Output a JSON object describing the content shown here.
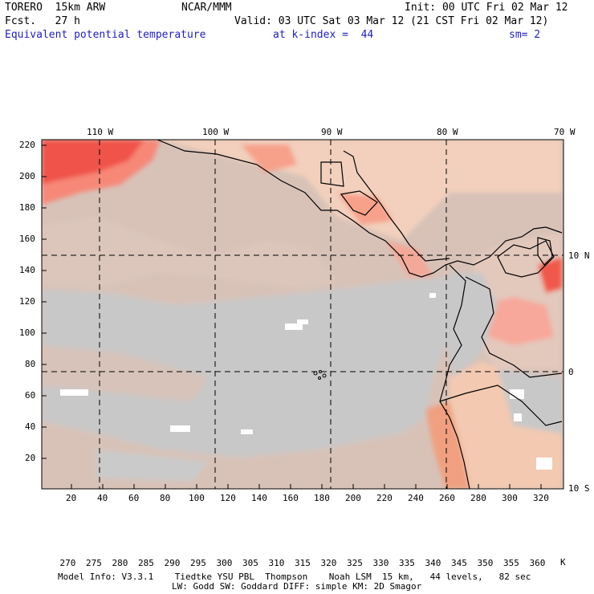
{
  "header": {
    "model": "TORERO  15km ARW",
    "center": "NCAR/MMM",
    "init": "Init: 00 UTC Fri 02 Mar 12",
    "fcst": "Fcst.   27 h",
    "valid": "Valid: 03 UTC Sat 03 Mar 12 (21 CST Fri 02 Mar 12)",
    "field": "Equivalent potential temperature",
    "level": "at k-index =  44",
    "smooth": "sm= 2"
  },
  "map": {
    "lon_labels": [
      "110 W",
      "100 W",
      "90 W",
      "80 W",
      "70 W"
    ],
    "lat_labels": [
      "10 N",
      "0",
      "10 S"
    ],
    "y_ticks": [
      "220",
      "200",
      "180",
      "160",
      "140",
      "120",
      "100",
      "80",
      "60",
      "40",
      "20"
    ],
    "x_ticks": [
      "20",
      "40",
      "60",
      "80",
      "100",
      "120",
      "140",
      "160",
      "180",
      "200",
      "220",
      "240",
      "260",
      "280",
      "300",
      "320"
    ]
  },
  "legend": {
    "labels": [
      "270",
      "275",
      "280",
      "285",
      "290",
      "295",
      "300",
      "305",
      "310",
      "315",
      "320",
      "325",
      "330",
      "335",
      "340",
      "345",
      "350",
      "355",
      "360"
    ],
    "unit": "K",
    "colors": [
      "#c850c8",
      "#a070d8",
      "#8080f0",
      "#50a8f0",
      "#30c8c0",
      "#30d898",
      "#60e060",
      "#a0f060",
      "#e0f070",
      "#f8e080",
      "#f8c070",
      "#f89060",
      "#f05040",
      "#f05050",
      "#f8a088",
      "#f8d0b8",
      "#d8c0b8",
      "#c8c8c8",
      "#e0e0e0",
      "#ffffff"
    ]
  },
  "footer": {
    "line1": "Model Info: V3.3.1    Tiedtke YSU PBL  Thompson    Noah LSM  15 km,   44 levels,   82 sec",
    "line2": "LW: Godd SW: Goddard DIFF: simple KM: 2D Smagor"
  }
}
